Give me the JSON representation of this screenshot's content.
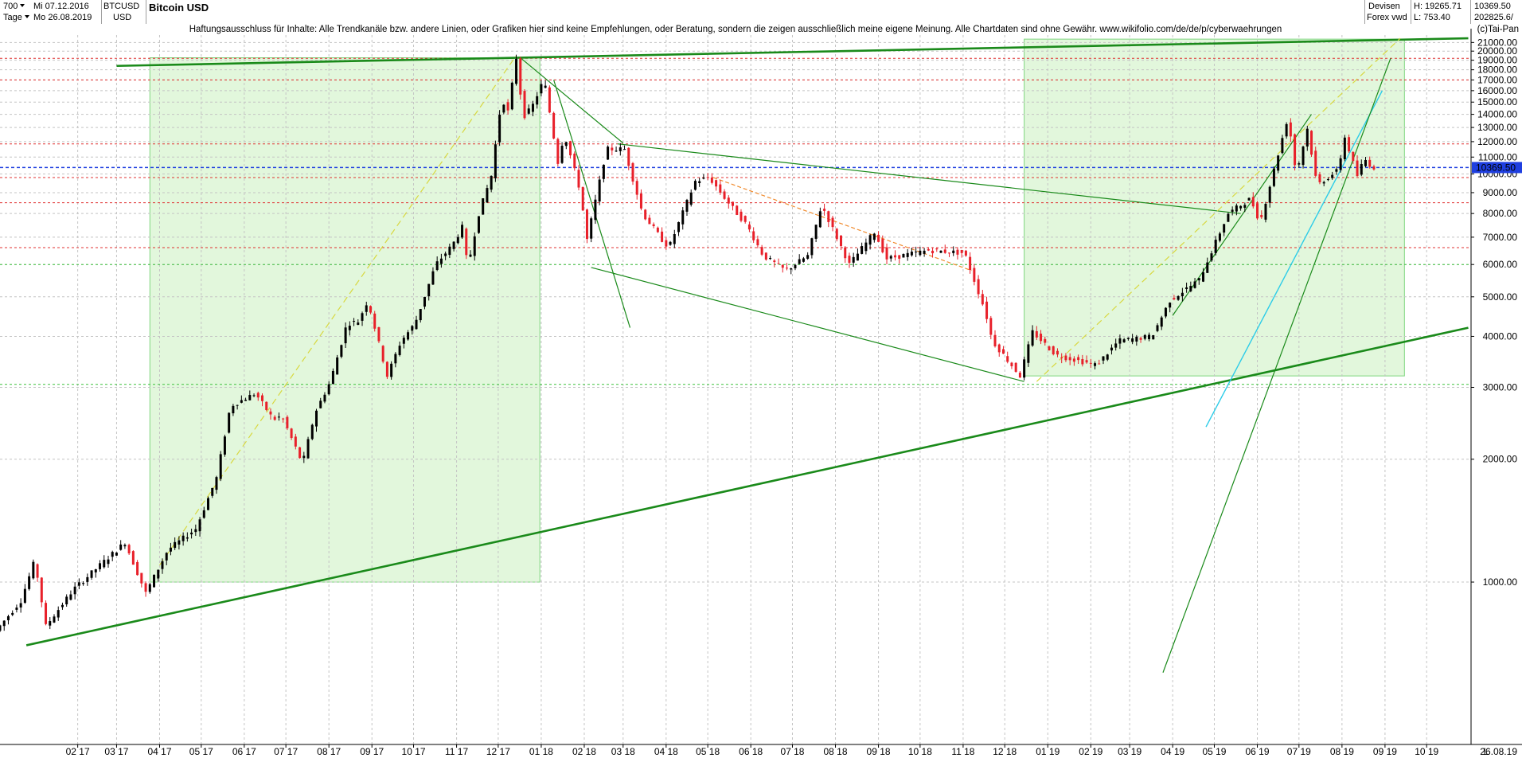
{
  "header": {
    "period_value": "700",
    "from_date": "Mi 07.12.2016",
    "unit_value": "Tage",
    "to_date": "Mo 26.08.2019",
    "symbol": "BTCUSD",
    "currency": "USD",
    "title": "Bitcoin USD",
    "source_top": "Devisen",
    "source_bottom": "Forex vwd",
    "high": "H: 19265.71",
    "low": "L: 753.40",
    "last_value": "10369.50",
    "volume_value": "202825.6/"
  },
  "disclaimer": "Haftungsausschluss für Inhalte: Alle Trendkanäle bzw. andere Linien, oder Grafiken hier sind keine Empfehlungen, oder Beratung, sondern die zeigen ausschließlich meine eigene Meinung. Alle Chartdaten sind ohne Gewähr.  www.wikifolio.com/de/de/p/cyberwaehrungen",
  "copyright": "(c)Tai-Pan",
  "colors": {
    "up": "#000000",
    "down": "#e8202a",
    "trend_green": "#1a8a1a",
    "zone_fill": "#e2f7dc",
    "zone_border": "#7ed67e",
    "current_line": "#1f3fe0",
    "resistance": "#e03030",
    "orange_trend": "#f08a2c",
    "yellow_trend": "#d8d840",
    "cyan_trend": "#2ccce8"
  },
  "chart_data": {
    "type": "candlestick",
    "title": "Bitcoin USD",
    "y_axis": {
      "side": "right",
      "range": [
        400,
        21900
      ],
      "ticks": [
        1000,
        2000,
        3000,
        4000,
        5000,
        6000,
        7000,
        8000,
        9000,
        10000,
        11000,
        12000,
        13000,
        14000,
        15000,
        16000,
        17000,
        18000,
        19000,
        20000,
        21000
      ],
      "tick_labels": [
        "1000.00",
        "2000.00",
        "3000.00",
        "4000.00",
        "5000.00",
        "6000.00",
        "7000.00",
        "8000.00",
        "9000.00",
        "10000.00",
        "11000.00",
        "12000.00",
        "13000.00",
        "14000.00",
        "15000.00",
        "16000.00",
        "17000.00",
        "18000.00",
        "19000.00",
        "20000.00",
        "21000.00"
      ]
    },
    "x_axis": {
      "range": [
        "2016-12-07",
        "2019-11-02"
      ],
      "ticks": [
        "2017-02",
        "2017-03",
        "2017-04",
        "2017-05",
        "2017-06",
        "2017-07",
        "2017-08",
        "2017-09",
        "2017-10",
        "2017-11",
        "2017-12",
        "2018-01",
        "2018-02",
        "2018-03",
        "2018-04",
        "2018-05",
        "2018-06",
        "2018-07",
        "2018-08",
        "2018-09",
        "2018-10",
        "2018-11",
        "2018-12",
        "2019-01",
        "2019-02",
        "2019-03",
        "2019-04",
        "2019-05",
        "2019-06",
        "2019-07",
        "2019-08",
        "2019-09",
        "2019-10"
      ],
      "tick_labels": [
        "02 17",
        "03 17",
        "04 17",
        "05 17",
        "06 17",
        "07 17",
        "08 17",
        "09 17",
        "10 17",
        "11 17",
        "12 17",
        "01 18",
        "02 18",
        "03 18",
        "04 18",
        "05 18",
        "06 18",
        "07 18",
        "08 18",
        "09 18",
        "10 18",
        "11 18",
        "12 18",
        "01 19",
        "02 19",
        "03 19",
        "04 19",
        "05 19",
        "06 19",
        "07 19",
        "08 19",
        "09 19",
        "10 19"
      ],
      "end_label": "26.08.19",
      "end_marker": "L"
    },
    "current_price": 10369.5,
    "current_price_label": "10369.50",
    "price_path": [
      [
        "2016-12-07",
        760
      ],
      [
        "2016-12-25",
        900
      ],
      [
        "2017-01-04",
        1130
      ],
      [
        "2017-01-12",
        780
      ],
      [
        "2017-02-01",
        960
      ],
      [
        "2017-02-20",
        1100
      ],
      [
        "2017-03-10",
        1250
      ],
      [
        "2017-03-25",
        940
      ],
      [
        "2017-04-10",
        1200
      ],
      [
        "2017-04-30",
        1350
      ],
      [
        "2017-05-15",
        1800
      ],
      [
        "2017-05-25",
        2700
      ],
      [
        "2017-06-12",
        2900
      ],
      [
        "2017-06-25",
        2500
      ],
      [
        "2017-07-01",
        2550
      ],
      [
        "2017-07-16",
        1950
      ],
      [
        "2017-07-25",
        2600
      ],
      [
        "2017-08-05",
        3100
      ],
      [
        "2017-08-17",
        4300
      ],
      [
        "2017-08-25",
        4350
      ],
      [
        "2017-09-01",
        4900
      ],
      [
        "2017-09-15",
        3200
      ],
      [
        "2017-09-25",
        3900
      ],
      [
        "2017-10-05",
        4300
      ],
      [
        "2017-10-20",
        6000
      ],
      [
        "2017-11-01",
        6700
      ],
      [
        "2017-11-08",
        7400
      ],
      [
        "2017-11-12",
        5900
      ],
      [
        "2017-11-20",
        8000
      ],
      [
        "2017-11-29",
        9900
      ],
      [
        "2017-12-07",
        15800
      ],
      [
        "2017-12-10",
        13500
      ],
      [
        "2017-12-17",
        19265
      ],
      [
        "2017-12-22",
        13800
      ],
      [
        "2017-12-28",
        14500
      ],
      [
        "2018-01-06",
        17100
      ],
      [
        "2018-01-17",
        10200
      ],
      [
        "2018-01-20",
        12800
      ],
      [
        "2018-02-01",
        9100
      ],
      [
        "2018-02-06",
        6900
      ],
      [
        "2018-02-20",
        11500
      ],
      [
        "2018-03-05",
        11500
      ],
      [
        "2018-03-18",
        8000
      ],
      [
        "2018-04-01",
        6900
      ],
      [
        "2018-04-06",
        6600
      ],
      [
        "2018-04-25",
        9600
      ],
      [
        "2018-05-05",
        9800
      ],
      [
        "2018-05-20",
        8400
      ],
      [
        "2018-06-01",
        7500
      ],
      [
        "2018-06-13",
        6300
      ],
      [
        "2018-06-29",
        5800
      ],
      [
        "2018-07-15",
        6300
      ],
      [
        "2018-07-25",
        8400
      ],
      [
        "2018-08-14",
        6000
      ],
      [
        "2018-09-01",
        7200
      ],
      [
        "2018-09-10",
        6200
      ],
      [
        "2018-10-10",
        6500
      ],
      [
        "2018-11-05",
        6400
      ],
      [
        "2018-11-20",
        4600
      ],
      [
        "2018-11-25",
        3900
      ],
      [
        "2018-12-15",
        3200
      ],
      [
        "2018-12-24",
        4100
      ],
      [
        "2019-01-10",
        3600
      ],
      [
        "2019-02-08",
        3400
      ],
      [
        "2019-02-24",
        3900
      ],
      [
        "2019-03-20",
        4000
      ],
      [
        "2019-04-02",
        4900
      ],
      [
        "2019-04-23",
        5500
      ],
      [
        "2019-05-14",
        8000
      ],
      [
        "2019-05-30",
        8700
      ],
      [
        "2019-06-06",
        7600
      ],
      [
        "2019-06-26",
        13800
      ],
      [
        "2019-07-02",
        10000
      ],
      [
        "2019-07-10",
        12900
      ],
      [
        "2019-07-17",
        9400
      ],
      [
        "2019-08-01",
        10200
      ],
      [
        "2019-08-06",
        12300
      ],
      [
        "2019-08-15",
        9900
      ],
      [
        "2019-08-20",
        10900
      ],
      [
        "2019-08-26",
        10369
      ]
    ],
    "horizontal_levels": [
      {
        "value": 10369.5,
        "style": "current"
      },
      {
        "value": 19200,
        "style": "resistance"
      },
      {
        "value": 17000,
        "style": "resistance"
      },
      {
        "value": 11850,
        "style": "resistance"
      },
      {
        "value": 9800,
        "style": "resistance"
      },
      {
        "value": 8500,
        "style": "resistance"
      },
      {
        "value": 6600,
        "style": "resistance"
      },
      {
        "value": 6000,
        "style": "support"
      },
      {
        "value": 3050,
        "style": "support"
      }
    ],
    "zones": [
      {
        "from": "2017-03-25",
        "to": "2017-12-31",
        "low": 1000,
        "high": 19265
      },
      {
        "from": "2018-12-15",
        "to": "2019-09-15",
        "low": 3200,
        "high": 21400
      }
    ],
    "trendlines": [
      {
        "from": [
          "2017-03-01",
          18400
        ],
        "to": [
          "2019-10-31",
          21500
        ],
        "style": "main"
      },
      {
        "from": [
          "2016-12-26",
          700
        ],
        "to": [
          "2019-10-31",
          4200
        ],
        "style": "main"
      },
      {
        "from": [
          "2018-02-25",
          11850
        ],
        "to": [
          "2019-05-20",
          8000
        ],
        "style": "thin"
      },
      {
        "from": [
          "2018-02-06",
          5900
        ],
        "to": [
          "2018-12-15",
          3100
        ],
        "style": "thin"
      },
      {
        "from": [
          "2017-12-17",
          19265
        ],
        "to": [
          "2018-03-01",
          11900
        ],
        "style": "thin"
      },
      {
        "from": [
          "2018-01-10",
          17000
        ],
        "to": [
          "2018-03-06",
          4200
        ],
        "style": "thin"
      },
      {
        "from": [
          "2018-05-05",
          9800
        ],
        "to": [
          "2018-11-07",
          5800
        ],
        "style": "orange"
      },
      {
        "from": [
          "2017-04-01",
          1100
        ],
        "to": [
          "2017-12-14",
          19500
        ],
        "style": "yellow"
      },
      {
        "from": [
          "2018-12-24",
          3100
        ],
        "to": [
          "2019-09-12",
          21500
        ],
        "style": "yellow"
      },
      {
        "from": [
          "2019-04-25",
          2400
        ],
        "to": [
          "2019-08-30",
          16000
        ],
        "style": "cyan"
      },
      {
        "from": [
          "2019-03-25",
          600
        ],
        "to": [
          "2019-09-05",
          19200
        ],
        "style": "thin"
      },
      {
        "from": [
          "2019-04-01",
          4500
        ],
        "to": [
          "2019-07-10",
          14000
        ],
        "style": "thin"
      }
    ]
  }
}
